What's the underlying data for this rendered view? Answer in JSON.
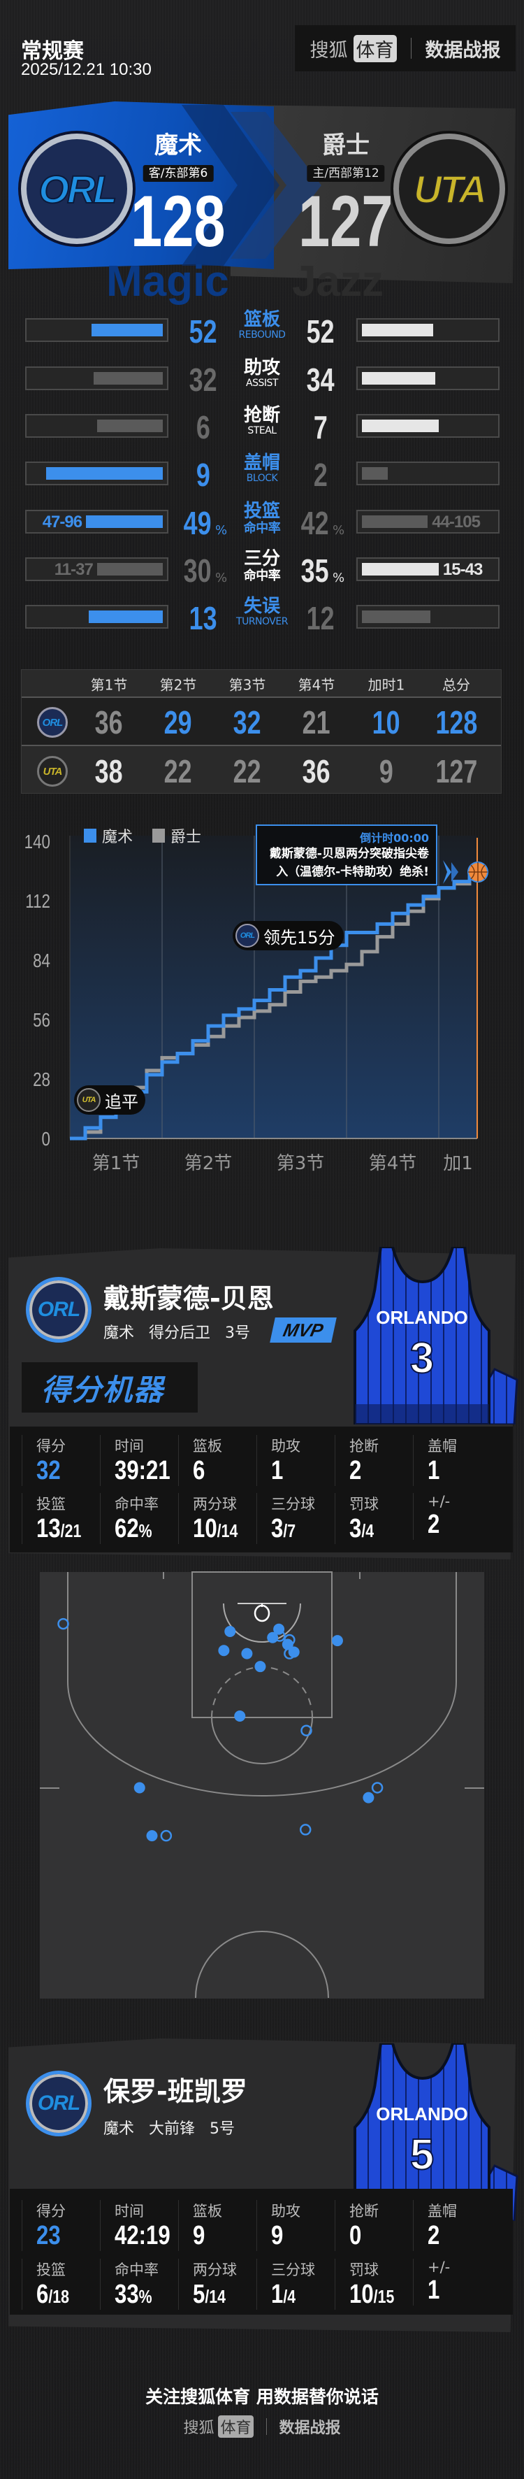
{
  "header": {
    "game_type": "常规赛",
    "datetime": "2025/12.21 10:30",
    "brand_sohu": "搜狐",
    "brand_sports": "体育",
    "brand_report": "数据战报"
  },
  "colors": {
    "accent": "#3c8fec",
    "win_right": "#e6e6e6",
    "lose": "#6a6a6a",
    "lose_fill": "#5a5a5a",
    "orange": "#f08a3c"
  },
  "teams": {
    "away": {
      "name": "魔术",
      "abbr": "ORL",
      "standing": "客/东部第6",
      "score": "128",
      "watermark": "Magic"
    },
    "home": {
      "name": "爵士",
      "abbr": "UTA",
      "standing": "主/西部第12",
      "score": "127",
      "watermark": "Jazz"
    }
  },
  "team_stats": [
    {
      "label": "篮板",
      "sub": "REBOUND",
      "left": "52",
      "right": "52",
      "left_value": 52,
      "right_value": 52,
      "leader": "both",
      "unit": ""
    },
    {
      "label": "助攻",
      "sub": "ASSIST",
      "left": "32",
      "right": "34",
      "left_value": 32,
      "right_value": 34,
      "leader": "right",
      "unit": ""
    },
    {
      "label": "抢断",
      "sub": "STEAL",
      "left": "6",
      "right": "7",
      "left_value": 6,
      "right_value": 7,
      "leader": "right",
      "unit": ""
    },
    {
      "label": "盖帽",
      "sub": "BLOCK",
      "left": "9",
      "right": "2",
      "left_value": 9,
      "right_value": 2,
      "leader": "left",
      "unit": ""
    },
    {
      "label": "投篮",
      "sub": "命中率",
      "left": "49",
      "right": "42",
      "left_value": 49,
      "right_value": 42,
      "leader": "left",
      "unit": "%",
      "left_detail": "47-96",
      "right_detail": "44-105"
    },
    {
      "label": "三分",
      "sub": "命中率",
      "left": "30",
      "right": "35",
      "left_value": 30,
      "right_value": 35,
      "leader": "right",
      "unit": "%",
      "left_detail": "11-37",
      "right_detail": "15-43"
    },
    {
      "label": "失误",
      "sub": "TURNOVER",
      "left": "13",
      "right": "12",
      "left_value": 13,
      "right_value": 12,
      "leader": "left",
      "unit": ""
    }
  ],
  "quarters": {
    "headers": [
      "第1节",
      "第2节",
      "第3节",
      "第4节",
      "加时1",
      "总分"
    ],
    "rows": [
      {
        "team": "ORL",
        "scores": [
          "36",
          "29",
          "32",
          "21",
          "10",
          "128"
        ]
      },
      {
        "team": "UTA",
        "scores": [
          "38",
          "22",
          "22",
          "36",
          "9",
          "127"
        ]
      }
    ]
  },
  "chart_data": {
    "type": "line",
    "step": true,
    "xlabel": "",
    "ylabel": "",
    "x_unit": "game minute",
    "xlim": [
      0,
      53
    ],
    "ylim": [
      0,
      140
    ],
    "yticks": [
      "0",
      "28",
      "56",
      "84",
      "112",
      "140"
    ],
    "xtick_labels": [
      "第1节",
      "第2节",
      "第3节",
      "第4节",
      "加1"
    ],
    "grid": "vertical quarter dividers",
    "legend": "top-left",
    "series": [
      {
        "name": "魔术",
        "color": "#3c8fec",
        "points": [
          [
            0,
            0
          ],
          [
            2,
            5
          ],
          [
            4,
            10
          ],
          [
            6,
            16
          ],
          [
            8,
            22
          ],
          [
            10,
            30
          ],
          [
            12,
            36
          ],
          [
            14,
            40
          ],
          [
            16,
            46
          ],
          [
            18,
            53
          ],
          [
            20,
            58
          ],
          [
            22,
            61
          ],
          [
            24,
            65
          ],
          [
            26,
            70
          ],
          [
            28,
            76
          ],
          [
            30,
            79
          ],
          [
            32,
            85
          ],
          [
            34,
            91
          ],
          [
            36,
            97
          ],
          [
            38,
            97
          ],
          [
            40,
            101
          ],
          [
            42,
            106
          ],
          [
            44,
            110
          ],
          [
            46,
            114
          ],
          [
            48,
            118
          ],
          [
            50,
            121
          ],
          [
            52,
            125
          ],
          [
            53,
            128
          ]
        ]
      },
      {
        "name": "爵士",
        "color": "#9a9a9a",
        "points": [
          [
            0,
            0
          ],
          [
            2,
            3
          ],
          [
            4,
            10
          ],
          [
            6,
            17
          ],
          [
            8,
            24
          ],
          [
            10,
            32
          ],
          [
            12,
            38
          ],
          [
            14,
            40
          ],
          [
            16,
            44
          ],
          [
            18,
            48
          ],
          [
            20,
            53
          ],
          [
            22,
            57
          ],
          [
            24,
            60
          ],
          [
            26,
            63
          ],
          [
            28,
            69
          ],
          [
            30,
            74
          ],
          [
            32,
            76
          ],
          [
            34,
            79
          ],
          [
            36,
            82
          ],
          [
            38,
            88
          ],
          [
            40,
            95
          ],
          [
            42,
            101
          ],
          [
            44,
            107
          ],
          [
            46,
            113
          ],
          [
            48,
            118
          ],
          [
            50,
            120
          ],
          [
            52,
            124
          ],
          [
            53,
            127
          ]
        ]
      }
    ],
    "annotations": [
      {
        "team": "UTA",
        "text": "追平",
        "at": [
          3,
          9
        ]
      },
      {
        "team": "ORL",
        "text": "领先15分",
        "at": [
          36,
          97
        ]
      }
    ],
    "final_callout": {
      "time": "倒计时00:00",
      "text": "戴斯蒙德-贝恩两分突破指尖卷入（温德尔-卡特助攻）绝杀!"
    }
  },
  "players": [
    {
      "name": "戴斯蒙德-贝恩",
      "team": "魔术",
      "position": "得分后卫",
      "number_label": "3号",
      "jersey_number": "3",
      "jersey_text": "ORLANDO",
      "badge": "MVP",
      "tagline": "得分机器",
      "stats": [
        {
          "label": "得分",
          "value": "32"
        },
        {
          "label": "时间",
          "value": "39:21"
        },
        {
          "label": "篮板",
          "value": "6"
        },
        {
          "label": "助攻",
          "value": "1"
        },
        {
          "label": "抢断",
          "value": "2"
        },
        {
          "label": "盖帽",
          "value": "1"
        },
        {
          "label": "投篮",
          "value": "13",
          "of": "/21"
        },
        {
          "label": "命中率",
          "value": "62",
          "of": "%"
        },
        {
          "label": "两分球",
          "value": "10",
          "of": "/14"
        },
        {
          "label": "三分球",
          "value": "3",
          "of": "/7"
        },
        {
          "label": "罚球",
          "value": "3",
          "of": "/4"
        },
        {
          "label": "+/-",
          "value": "2"
        }
      ],
      "shots_unit": "feet from basket (x lateral, y from baseline)",
      "shots": [
        {
          "x": -22.4,
          "y": 6.8,
          "made": false
        },
        {
          "x": -3.6,
          "y": 7.8,
          "made": true
        },
        {
          "x": 1.9,
          "y": 7.5,
          "made": true
        },
        {
          "x": 2.0,
          "y": 8.4,
          "made": false
        },
        {
          "x": 1.2,
          "y": 8.6,
          "made": true
        },
        {
          "x": 3.1,
          "y": 8.9,
          "made": false
        },
        {
          "x": 2.9,
          "y": 9.5,
          "made": true
        },
        {
          "x": 8.5,
          "y": 9.0,
          "made": true
        },
        {
          "x": -4.3,
          "y": 10.3,
          "made": true
        },
        {
          "x": -1.7,
          "y": 10.7,
          "made": true
        },
        {
          "x": 3.6,
          "y": 10.5,
          "made": true
        },
        {
          "x": 3.1,
          "y": 10.7,
          "made": false
        },
        {
          "x": -0.2,
          "y": 12.4,
          "made": true
        },
        {
          "x": -2.5,
          "y": 18.9,
          "made": true
        },
        {
          "x": 5.0,
          "y": 20.8,
          "made": false
        },
        {
          "x": -13.8,
          "y": 28.3,
          "made": true
        },
        {
          "x": 13.0,
          "y": 28.3,
          "made": false
        },
        {
          "x": 12.0,
          "y": 29.6,
          "made": true
        },
        {
          "x": -12.4,
          "y": 34.6,
          "made": true
        },
        {
          "x": -10.8,
          "y": 34.6,
          "made": false
        },
        {
          "x": 4.9,
          "y": 33.8,
          "made": false
        }
      ]
    },
    {
      "name": "保罗-班凯罗",
      "team": "魔术",
      "position": "大前锋",
      "number_label": "5号",
      "jersey_number": "5",
      "jersey_text": "ORLANDO",
      "stats": [
        {
          "label": "得分",
          "value": "23"
        },
        {
          "label": "时间",
          "value": "42:19"
        },
        {
          "label": "篮板",
          "value": "9"
        },
        {
          "label": "助攻",
          "value": "9"
        },
        {
          "label": "抢断",
          "value": "0"
        },
        {
          "label": "盖帽",
          "value": "2"
        },
        {
          "label": "投篮",
          "value": "6",
          "of": "/18"
        },
        {
          "label": "命中率",
          "value": "33",
          "of": "%"
        },
        {
          "label": "两分球",
          "value": "5",
          "of": "/14"
        },
        {
          "label": "三分球",
          "value": "1",
          "of": "/4"
        },
        {
          "label": "罚球",
          "value": "10",
          "of": "/15"
        },
        {
          "label": "+/-",
          "value": "1"
        }
      ]
    }
  ],
  "footer": {
    "slogan": "关注搜狐体育 用数据替你说话",
    "brand_sohu": "搜狐",
    "brand_sports": "体育",
    "brand_report": "数据战报"
  }
}
